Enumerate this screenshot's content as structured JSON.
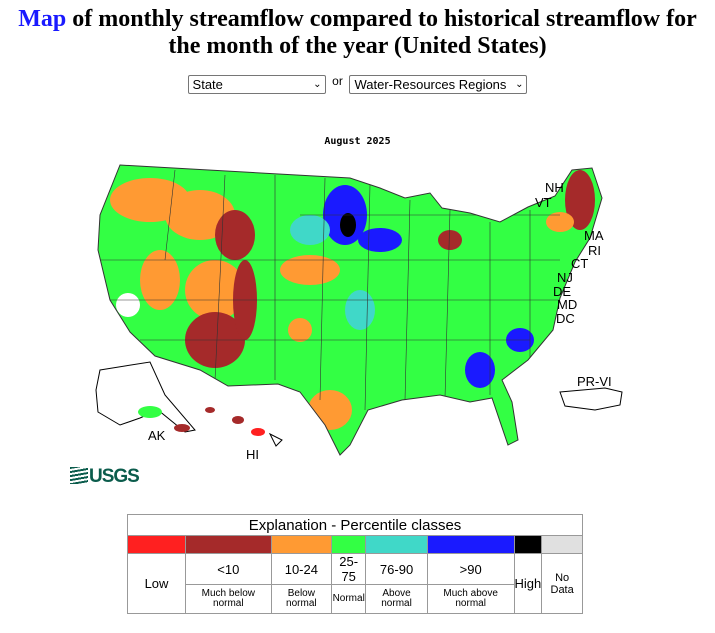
{
  "header": {
    "title_link": "Map",
    "title_rest": " of monthly streamflow compared to historical streamflow for the month of the year (United States)"
  },
  "selectors": {
    "state": "State",
    "or": "or",
    "regions": "Water-Resources Regions"
  },
  "map": {
    "date": "August 2025",
    "labels": [
      "NH",
      "VT",
      "MA",
      "RI",
      "CT",
      "NJ",
      "DE",
      "MD",
      "DC",
      "PR-VI",
      "AK",
      "HI"
    ],
    "logo": "USGS"
  },
  "legend": {
    "title": "Explanation - Percentile classes",
    "classes": [
      {
        "range": "",
        "label": "Low",
        "desc": "",
        "color": "#ff2020"
      },
      {
        "range": "<10",
        "label": "",
        "desc": "Much below normal",
        "color": "#a52a2a"
      },
      {
        "range": "10-24",
        "label": "",
        "desc": "Below normal",
        "color": "#ff9a33"
      },
      {
        "range": "25-75",
        "label": "",
        "desc": "Normal",
        "color": "#33ff44"
      },
      {
        "range": "76-90",
        "label": "",
        "desc": "Above normal",
        "color": "#40d8c8"
      },
      {
        "range": ">90",
        "label": "",
        "desc": "Much above normal",
        "color": "#1a1aff"
      },
      {
        "range": "",
        "label": "High",
        "desc": "",
        "color": "#000000"
      },
      {
        "range": "",
        "label": "No Data",
        "desc": "",
        "color": "#e0e0e0"
      }
    ]
  }
}
